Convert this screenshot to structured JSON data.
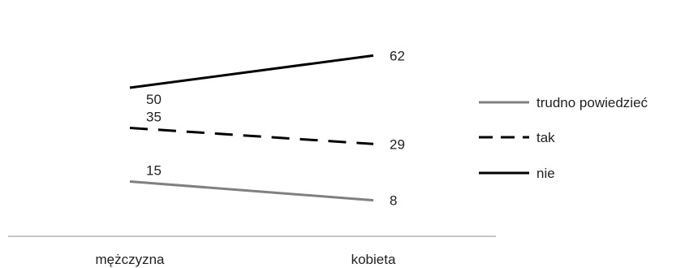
{
  "chart_data": {
    "type": "line",
    "categories": [
      "mężczyzna",
      "kobieta"
    ],
    "series": [
      {
        "name": "trudno powiedzieć",
        "values": [
          15,
          8
        ],
        "color": "#808080",
        "dash": "solid"
      },
      {
        "name": "tak",
        "values": [
          35,
          29
        ],
        "color": "#000000",
        "dash": "dashed"
      },
      {
        "name": "nie",
        "values": [
          50,
          62
        ],
        "color": "#000000",
        "dash": "solid"
      }
    ],
    "title": "",
    "xlabel": "",
    "ylabel": "",
    "ylim": [
      0,
      70
    ],
    "grid": false,
    "legend_position": "right"
  }
}
